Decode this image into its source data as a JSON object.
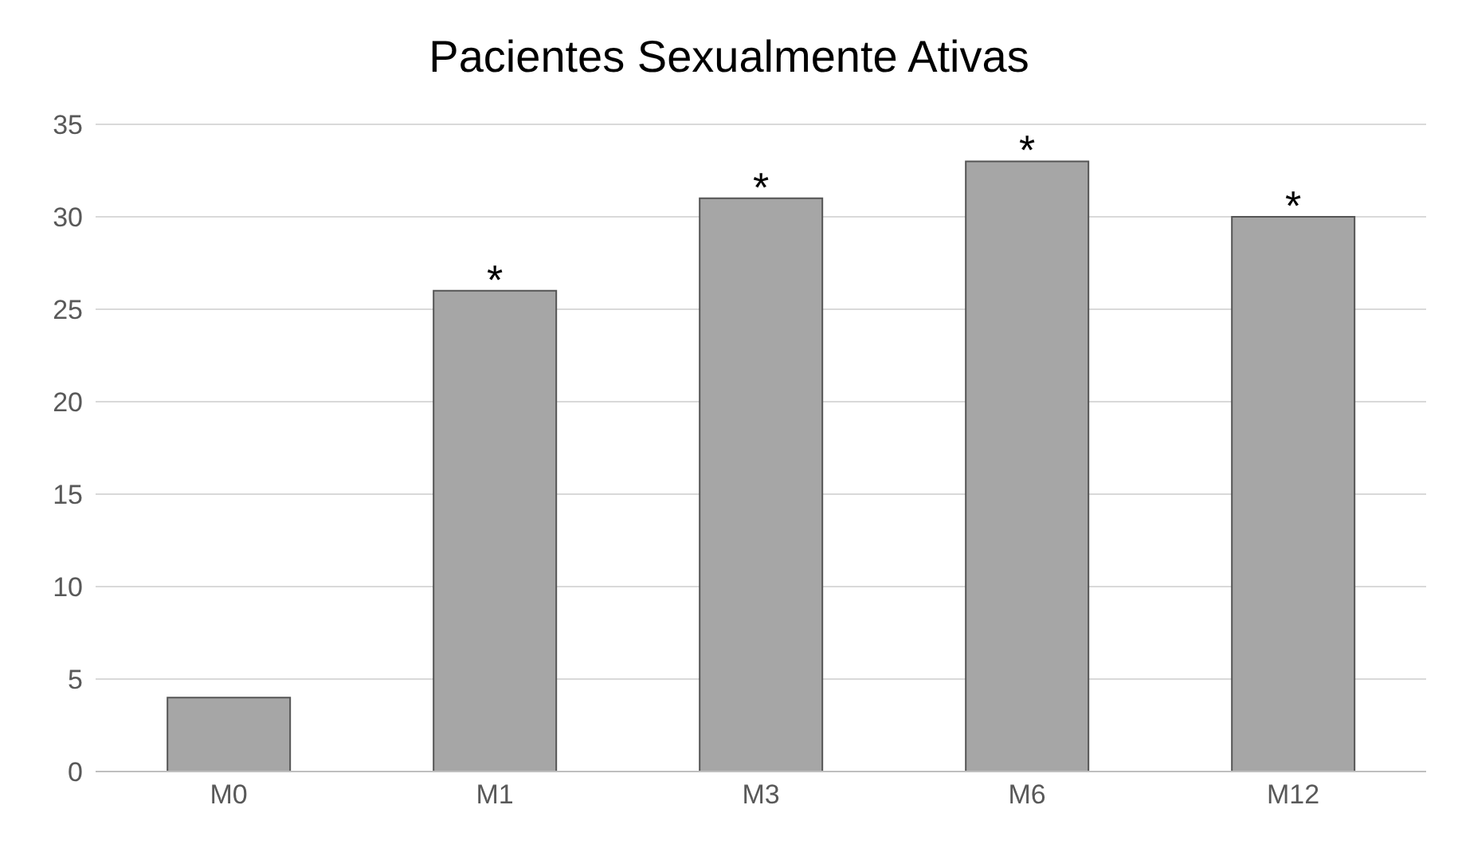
{
  "chart_data": {
    "type": "bar",
    "title": "Pacientes Sexualmente Ativas",
    "categories": [
      "M0",
      "M1",
      "M3",
      "M6",
      "M12"
    ],
    "values": [
      4,
      26,
      31,
      33,
      30
    ],
    "color": "#a6a6a6",
    "ylim": [
      0,
      35
    ],
    "yticks": [
      0,
      5,
      10,
      15,
      20,
      25,
      30,
      35
    ],
    "grid": "y",
    "annotations": [
      {
        "text": "*",
        "x": "M1",
        "y": 26
      },
      {
        "text": "*",
        "x": "M3",
        "y": 31
      },
      {
        "text": "*",
        "x": "M6",
        "y": 33
      },
      {
        "text": "*",
        "x": "M12",
        "y": 30
      }
    ]
  }
}
